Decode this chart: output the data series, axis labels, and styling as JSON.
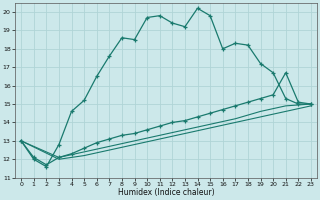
{
  "xlabel": "Humidex (Indice chaleur)",
  "xlim": [
    -0.5,
    23.5
  ],
  "ylim": [
    11,
    20.5
  ],
  "yticks": [
    11,
    12,
    13,
    14,
    15,
    16,
    17,
    18,
    19,
    20
  ],
  "xticks": [
    0,
    1,
    2,
    3,
    4,
    5,
    6,
    7,
    8,
    9,
    10,
    11,
    12,
    13,
    14,
    15,
    16,
    17,
    18,
    19,
    20,
    21,
    22,
    23
  ],
  "bg_color": "#cce8ea",
  "grid_color": "#b0d4d6",
  "line_color": "#1a7a6e",
  "line1_x": [
    0,
    1,
    2,
    3,
    4,
    5,
    6,
    7,
    8,
    9,
    10,
    11,
    12,
    13,
    14,
    15,
    16,
    17,
    18,
    19,
    20,
    21,
    22,
    23
  ],
  "line1_y": [
    13.0,
    12.0,
    11.6,
    12.8,
    14.6,
    15.2,
    16.5,
    17.6,
    18.6,
    18.5,
    19.7,
    19.8,
    19.4,
    19.2,
    20.2,
    19.8,
    18.0,
    18.3,
    18.2,
    17.2,
    16.7,
    15.3,
    15.0,
    15.0
  ],
  "line2_x": [
    0,
    1,
    2,
    3,
    4,
    5,
    6,
    7,
    8,
    9,
    10,
    11,
    12,
    13,
    14,
    15,
    16,
    17,
    18,
    19,
    20,
    21,
    22,
    23
  ],
  "line2_y": [
    13.0,
    12.1,
    11.7,
    12.1,
    12.3,
    12.6,
    12.9,
    13.1,
    13.3,
    13.4,
    13.6,
    13.8,
    14.0,
    14.1,
    14.3,
    14.5,
    14.7,
    14.9,
    15.1,
    15.3,
    15.5,
    16.7,
    15.1,
    15.0
  ],
  "line3_x": [
    0,
    3,
    5,
    7,
    9,
    11,
    13,
    15,
    17,
    19,
    21,
    23
  ],
  "line3_y": [
    13.0,
    12.1,
    12.4,
    12.7,
    13.0,
    13.3,
    13.6,
    13.9,
    14.2,
    14.6,
    14.9,
    15.0
  ],
  "line4_x": [
    0,
    3,
    5,
    7,
    9,
    11,
    13,
    15,
    17,
    19,
    21,
    23
  ],
  "line4_y": [
    13.0,
    12.0,
    12.2,
    12.5,
    12.8,
    13.1,
    13.4,
    13.7,
    14.0,
    14.3,
    14.6,
    14.9
  ]
}
